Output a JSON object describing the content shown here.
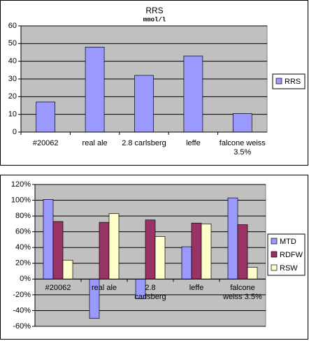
{
  "chart_data": [
    {
      "type": "bar",
      "title": "RRS",
      "subtitle": "mmol/l",
      "categories": [
        "#20062",
        "real ale",
        "2.8 carlsberg",
        "leffe",
        "falcone weiss 3.5%"
      ],
      "series": [
        {
          "name": "RRS",
          "color": "#9999ff",
          "values": [
            17,
            48,
            32,
            43,
            10.5
          ]
        }
      ],
      "ylim": [
        0,
        60
      ],
      "yticks": [
        0,
        10,
        20,
        30,
        40,
        50,
        60
      ],
      "grid": true,
      "legend": "right"
    },
    {
      "type": "bar",
      "categories": [
        "#20062",
        "real ale",
        "2.8 carlsberg",
        "leffe",
        "falcone weiss 3.5%"
      ],
      "series": [
        {
          "name": "MTD",
          "color": "#9999ff",
          "values": [
            101,
            -50,
            -25,
            41,
            103
          ]
        },
        {
          "name": "RDFW",
          "color": "#993366",
          "values": [
            73,
            72,
            75,
            71,
            69
          ]
        },
        {
          "name": "RSW",
          "color": "#ffffcc",
          "values": [
            24,
            83,
            54,
            70,
            15
          ]
        }
      ],
      "ylim": [
        -60,
        120
      ],
      "yticks": [
        {
          "value": -60,
          "label": "-60%"
        },
        {
          "value": -40,
          "label": "-40%"
        },
        {
          "value": -20,
          "label": "-20%"
        },
        {
          "value": 0,
          "label": "0%"
        },
        {
          "value": 20,
          "label": "20%"
        },
        {
          "value": 40,
          "label": "40%"
        },
        {
          "value": 60,
          "label": "60%"
        },
        {
          "value": 80,
          "label": "80%"
        },
        {
          "value": 100,
          "label": "100%"
        },
        {
          "value": 120,
          "label": "120%"
        }
      ],
      "grid": true,
      "legend": "right"
    }
  ]
}
